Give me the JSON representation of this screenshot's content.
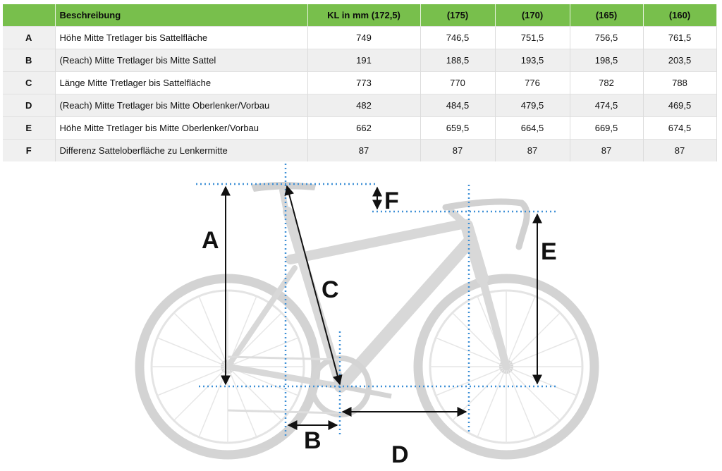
{
  "table": {
    "headers": [
      "",
      "Beschreibung",
      "KL in mm (172,5)",
      "(175)",
      "(170)",
      "(165)",
      "(160)"
    ],
    "rows": [
      {
        "key": "A",
        "desc": "Höhe Mitte Tretlager bis Sattelfläche",
        "values": [
          "749",
          "746,5",
          "751,5",
          "756,5",
          "761,5"
        ]
      },
      {
        "key": "B",
        "desc": "(Reach) Mitte Tretlager bis Mitte Sattel",
        "values": [
          "191",
          "188,5",
          "193,5",
          "198,5",
          "203,5"
        ]
      },
      {
        "key": "C",
        "desc": "Länge Mitte Tretlager bis Sattelfläche",
        "values": [
          "773",
          "770",
          "776",
          "782",
          "788"
        ]
      },
      {
        "key": "D",
        "desc": "(Reach) Mitte Tretlager bis Mitte Oberlenker/Vorbau",
        "values": [
          "482",
          "484,5",
          "479,5",
          "474,5",
          "469,5"
        ]
      },
      {
        "key": "E",
        "desc": "Höhe Mitte Tretlager bis Mitte Oberlenker/Vorbau",
        "values": [
          "662",
          "659,5",
          "664,5",
          "669,5",
          "674,5"
        ]
      },
      {
        "key": "F",
        "desc": "Differenz Satteloberfläche zu Lenkermitte",
        "values": [
          "87",
          "87",
          "87",
          "87",
          "87"
        ]
      }
    ]
  },
  "diagram": {
    "labels": {
      "A": "A",
      "B": "B",
      "C": "C",
      "D": "D",
      "E": "E",
      "F": "F"
    },
    "colors": {
      "guide": "#3d8fd6",
      "arrow": "#111111",
      "bike": "#c8c8c8",
      "header": "#78bf4c"
    }
  }
}
